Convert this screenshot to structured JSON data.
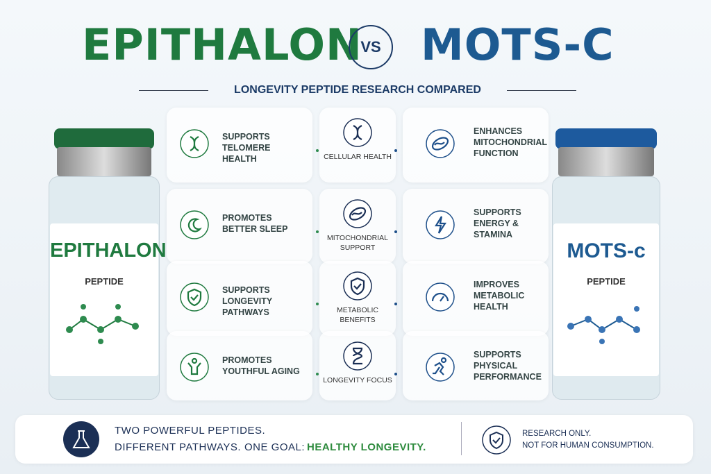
{
  "header": {
    "title_left": "EPITHALON",
    "vs": "VS",
    "title_right": "MOTS-C",
    "subtitle": "LONGEVITY PEPTIDE RESEARCH COMPARED"
  },
  "left_vial": {
    "name": "EPITHALON",
    "label": "PEPTIDE"
  },
  "right_vial": {
    "name": "MOTS-c",
    "label": "PEPTIDE"
  },
  "rows": [
    {
      "left": "SUPPORTS TELOMERE HEALTH",
      "center": "CELLULAR HEALTH",
      "right": "ENHANCES MITOCHONDRIAL FUNCTION"
    },
    {
      "left": "PROMOTES BETTER SLEEP",
      "center": "MITOCHONDRIAL SUPPORT",
      "right": "SUPPORTS ENERGY & STAMINA"
    },
    {
      "left": "SUPPORTS LONGEVITY PATHWAYS",
      "center": "METABOLIC BENEFITS",
      "right": "IMPROVES METABOLIC HEALTH"
    },
    {
      "left": "PROMOTES YOUTHFUL AGING",
      "center": "LONGEVITY FOCUS",
      "right": "SUPPORTS PHYSICAL PERFORMANCE"
    }
  ],
  "footer": {
    "line1": "TWO POWERFUL PEPTIDES.",
    "line2": "DIFFERENT PATHWAYS.",
    "goal_label": "ONE GOAL:",
    "goal": "HEALTHY LONGEVITY.",
    "notice_1": "RESEARCH ONLY.",
    "notice_2": "NOT FOR HUMAN CONSUMPTION."
  }
}
